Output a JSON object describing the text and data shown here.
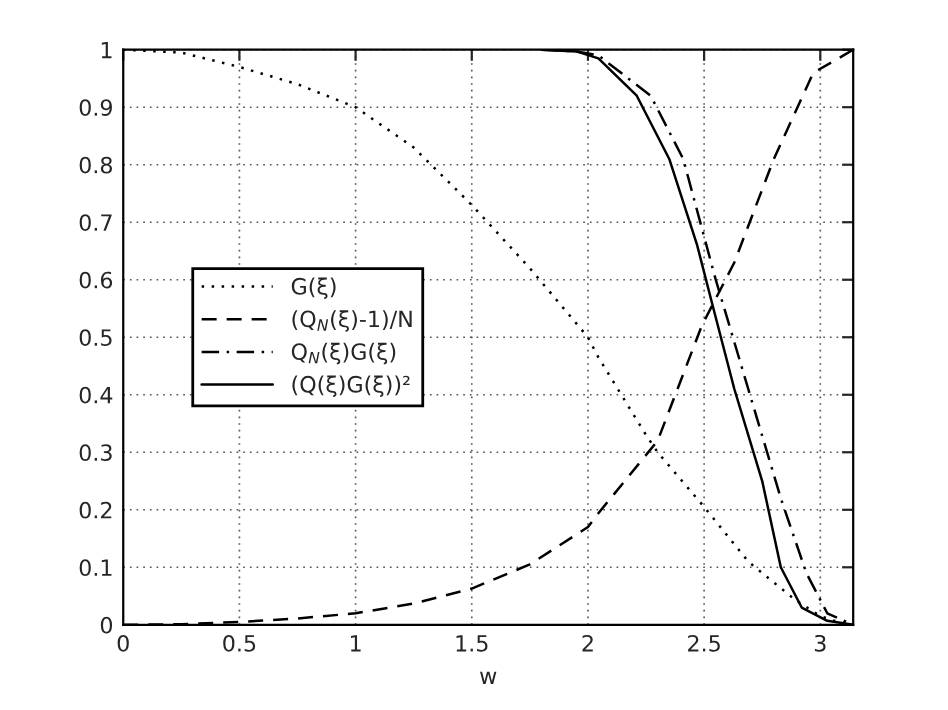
{
  "chart_data": {
    "type": "line",
    "xlabel": "w",
    "xlim": [
      0,
      3.1416
    ],
    "ylim": [
      0,
      1
    ],
    "xticks": [
      0,
      0.5,
      1,
      1.5,
      2,
      2.5,
      3
    ],
    "yticks": [
      0,
      0.1,
      0.2,
      0.3,
      0.4,
      0.5,
      0.6,
      0.7,
      0.8,
      0.9,
      1
    ],
    "grid": true,
    "legend": "left",
    "series": [
      {
        "name": "G(ξ)",
        "color": "#000000",
        "line_style": "dotted",
        "x": [
          0,
          0.25,
          0.5,
          0.75,
          1,
          1.25,
          1.5,
          1.75,
          2,
          2.045,
          2.25,
          2.3,
          2.5,
          2.69,
          2.75,
          2.89,
          3,
          3.06,
          3.1416
        ],
        "values": [
          1,
          0.995,
          0.97,
          0.94,
          0.9,
          0.83,
          0.73,
          0.62,
          0.5,
          0.465,
          0.33,
          0.3,
          0.205,
          0.11,
          0.09,
          0.044,
          0.015,
          0.007,
          0
        ]
      },
      {
        "name": "(Q$_{N}$(ξ)-1)/N",
        "color": "#000000",
        "line_style": "dashed",
        "x": [
          0,
          0.25,
          0.5,
          0.75,
          1,
          1.25,
          1.5,
          1.75,
          2,
          2.045,
          2.3,
          2.49,
          2.63,
          2.8,
          2.97,
          3.1,
          3.1416
        ],
        "values": [
          0,
          0.001,
          0.005,
          0.011,
          0.02,
          0.037,
          0.063,
          0.105,
          0.17,
          0.194,
          0.32,
          0.52,
          0.63,
          0.81,
          0.96,
          0.99,
          1
        ]
      },
      {
        "name": "Q$_{N}$(ξ)G(ξ)",
        "color": "#000000",
        "line_style": "dashdot",
        "x": [
          1.8,
          1.95,
          2.045,
          2.27,
          2.41,
          2.55,
          2.69,
          2.83,
          2.94,
          3.03,
          3.1416
        ],
        "values": [
          1,
          0.997,
          0.99,
          0.92,
          0.81,
          0.6,
          0.41,
          0.22,
          0.09,
          0.02,
          0
        ]
      },
      {
        "name": "(Q(ξ)G(ξ))²",
        "color": "#000000",
        "line_style": "solid",
        "x": [
          1.8,
          1.95,
          2.045,
          2.21,
          2.35,
          2.47,
          2.54,
          2.63,
          2.75,
          2.83,
          2.92,
          3.03,
          3.1416
        ],
        "values": [
          1,
          0.997,
          0.985,
          0.92,
          0.81,
          0.66,
          0.55,
          0.41,
          0.25,
          0.1,
          0.03,
          0.007,
          0
        ]
      }
    ]
  }
}
